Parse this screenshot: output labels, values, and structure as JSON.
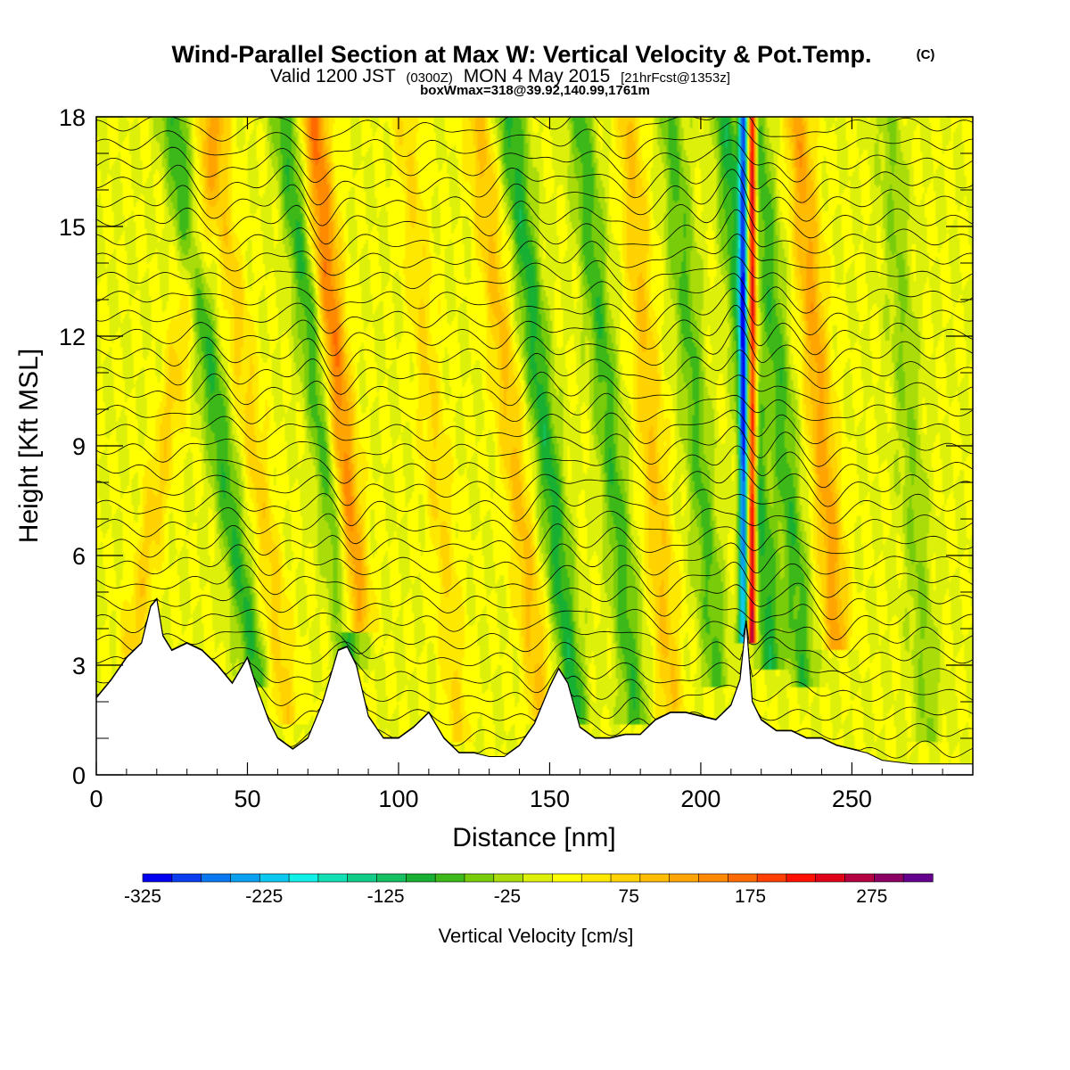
{
  "figure": {
    "title": "Wind-Parallel Section at Max W: Vertical Velocity & Pot.Temp.",
    "copyright": "(C)",
    "subtitle_prefix": "Valid 1200 JST",
    "subtitle_utc": "(0300Z)",
    "subtitle_date": "MON 4 May 2015",
    "subtitle_fcst": "[21hrFcst@1353z]",
    "subtitle2": "boxWmax=318@39.92,140.99,1761m"
  },
  "chart_data": {
    "type": "heatmap",
    "title": "Wind-Parallel Section at Max W: Vertical Velocity & Pot.Temp.",
    "xlabel": "Distance [nm]",
    "ylabel": "Height [Kft MSL]",
    "xlim": [
      0,
      290
    ],
    "ylim": [
      0,
      18
    ],
    "x_ticks": [
      0,
      50,
      100,
      150,
      200,
      250
    ],
    "y_ticks": [
      0,
      3,
      6,
      9,
      12,
      15,
      18
    ],
    "colorbar": {
      "label": "Vertical Velocity [cm/s]",
      "tick_labels": [
        "-325",
        "-225",
        "-125",
        "-25",
        "75",
        "175",
        "275"
      ],
      "tick_values": [
        -325,
        -225,
        -125,
        -25,
        75,
        175,
        275
      ],
      "levels": [
        -325,
        -300,
        -275,
        -250,
        -225,
        -200,
        -175,
        -150,
        -125,
        -100,
        -75,
        -50,
        -25,
        0,
        25,
        50,
        75,
        100,
        125,
        150,
        175,
        200,
        225,
        250,
        275,
        300,
        325
      ],
      "colors": [
        "#0000f0",
        "#0a3cf0",
        "#0a78f0",
        "#0aa0f0",
        "#0ac8f0",
        "#10f0e8",
        "#10e0b4",
        "#10cc88",
        "#14c060",
        "#18b032",
        "#3cb818",
        "#78cc0a",
        "#aadc0a",
        "#dcf00a",
        "#ffff00",
        "#ffe800",
        "#ffd200",
        "#ffbc00",
        "#ffa400",
        "#ff8a00",
        "#ff6a00",
        "#ff4000",
        "#ff1000",
        "#e00018",
        "#b40040",
        "#8c0064",
        "#64008c"
      ]
    },
    "terrain_height_kft": [
      [
        0,
        2.1
      ],
      [
        5,
        2.6
      ],
      [
        10,
        3.2
      ],
      [
        15,
        3.6
      ],
      [
        18,
        4.6
      ],
      [
        20,
        4.8
      ],
      [
        22,
        3.8
      ],
      [
        25,
        3.4
      ],
      [
        30,
        3.6
      ],
      [
        35,
        3.4
      ],
      [
        40,
        3.0
      ],
      [
        45,
        2.5
      ],
      [
        50,
        3.2
      ],
      [
        53,
        2.4
      ],
      [
        57,
        1.5
      ],
      [
        60,
        1.0
      ],
      [
        65,
        0.7
      ],
      [
        70,
        1.0
      ],
      [
        75,
        2.0
      ],
      [
        80,
        3.4
      ],
      [
        83,
        3.5
      ],
      [
        86,
        3.0
      ],
      [
        90,
        1.6
      ],
      [
        95,
        1.0
      ],
      [
        100,
        1.0
      ],
      [
        105,
        1.3
      ],
      [
        110,
        1.7
      ],
      [
        115,
        1.0
      ],
      [
        120,
        0.6
      ],
      [
        125,
        0.6
      ],
      [
        130,
        0.5
      ],
      [
        135,
        0.5
      ],
      [
        140,
        0.8
      ],
      [
        145,
        1.4
      ],
      [
        150,
        2.4
      ],
      [
        153,
        2.9
      ],
      [
        156,
        2.5
      ],
      [
        160,
        1.3
      ],
      [
        165,
        1.0
      ],
      [
        170,
        1.0
      ],
      [
        175,
        1.1
      ],
      [
        180,
        1.1
      ],
      [
        185,
        1.5
      ],
      [
        190,
        1.7
      ],
      [
        195,
        1.7
      ],
      [
        200,
        1.6
      ],
      [
        205,
        1.5
      ],
      [
        210,
        1.9
      ],
      [
        213,
        2.6
      ],
      [
        215,
        4.2
      ],
      [
        217,
        2.0
      ],
      [
        220,
        1.5
      ],
      [
        225,
        1.2
      ],
      [
        230,
        1.2
      ],
      [
        235,
        1.0
      ],
      [
        240,
        1.0
      ],
      [
        245,
        0.8
      ],
      [
        250,
        0.7
      ],
      [
        255,
        0.6
      ],
      [
        260,
        0.4
      ],
      [
        270,
        0.3
      ],
      [
        280,
        0.3
      ],
      [
        290,
        0.3
      ]
    ],
    "updraft_bands_cm_s": [
      {
        "x_base": 12,
        "x_top": 40,
        "z_base": 3.5,
        "w": 60
      },
      {
        "x_base": 52,
        "x_top": 25,
        "z_base": 3.0,
        "w": -100
      },
      {
        "x_base": 63,
        "x_top": 38,
        "z_base": 2.0,
        "w": 60
      },
      {
        "x_base": 86,
        "x_top": 72,
        "z_base": 4.5,
        "w": 150
      },
      {
        "x_base": 84,
        "x_top": 62,
        "z_base": 3.5,
        "w": -100
      },
      {
        "x_base": 120,
        "x_top": 102,
        "z_base": 1.5,
        "w": 50
      },
      {
        "x_base": 147,
        "x_top": 126,
        "z_base": 2.0,
        "w": 80
      },
      {
        "x_base": 158,
        "x_top": 137,
        "z_base": 2.0,
        "w": -110
      },
      {
        "x_base": 178,
        "x_top": 160,
        "z_base": 2.0,
        "w": -90
      },
      {
        "x_base": 190,
        "x_top": 176,
        "z_base": 2.0,
        "w": 75
      },
      {
        "x_base": 205,
        "x_top": 190,
        "z_base": 3.0,
        "w": -80
      },
      {
        "x_base": 214,
        "x_top": 214,
        "z_base": 4.2,
        "w": -260
      },
      {
        "x_base": 217,
        "x_top": 217,
        "z_base": 4.2,
        "w": 300
      },
      {
        "x_base": 223,
        "x_top": 208,
        "z_base": 3.5,
        "w": -110
      },
      {
        "x_base": 245,
        "x_top": 232,
        "z_base": 4.0,
        "w": 110
      },
      {
        "x_base": 234,
        "x_top": 218,
        "z_base": 3.0,
        "w": -90
      },
      {
        "x_base": 275,
        "x_top": 262,
        "z_base": 1.5,
        "w": -50
      }
    ]
  }
}
